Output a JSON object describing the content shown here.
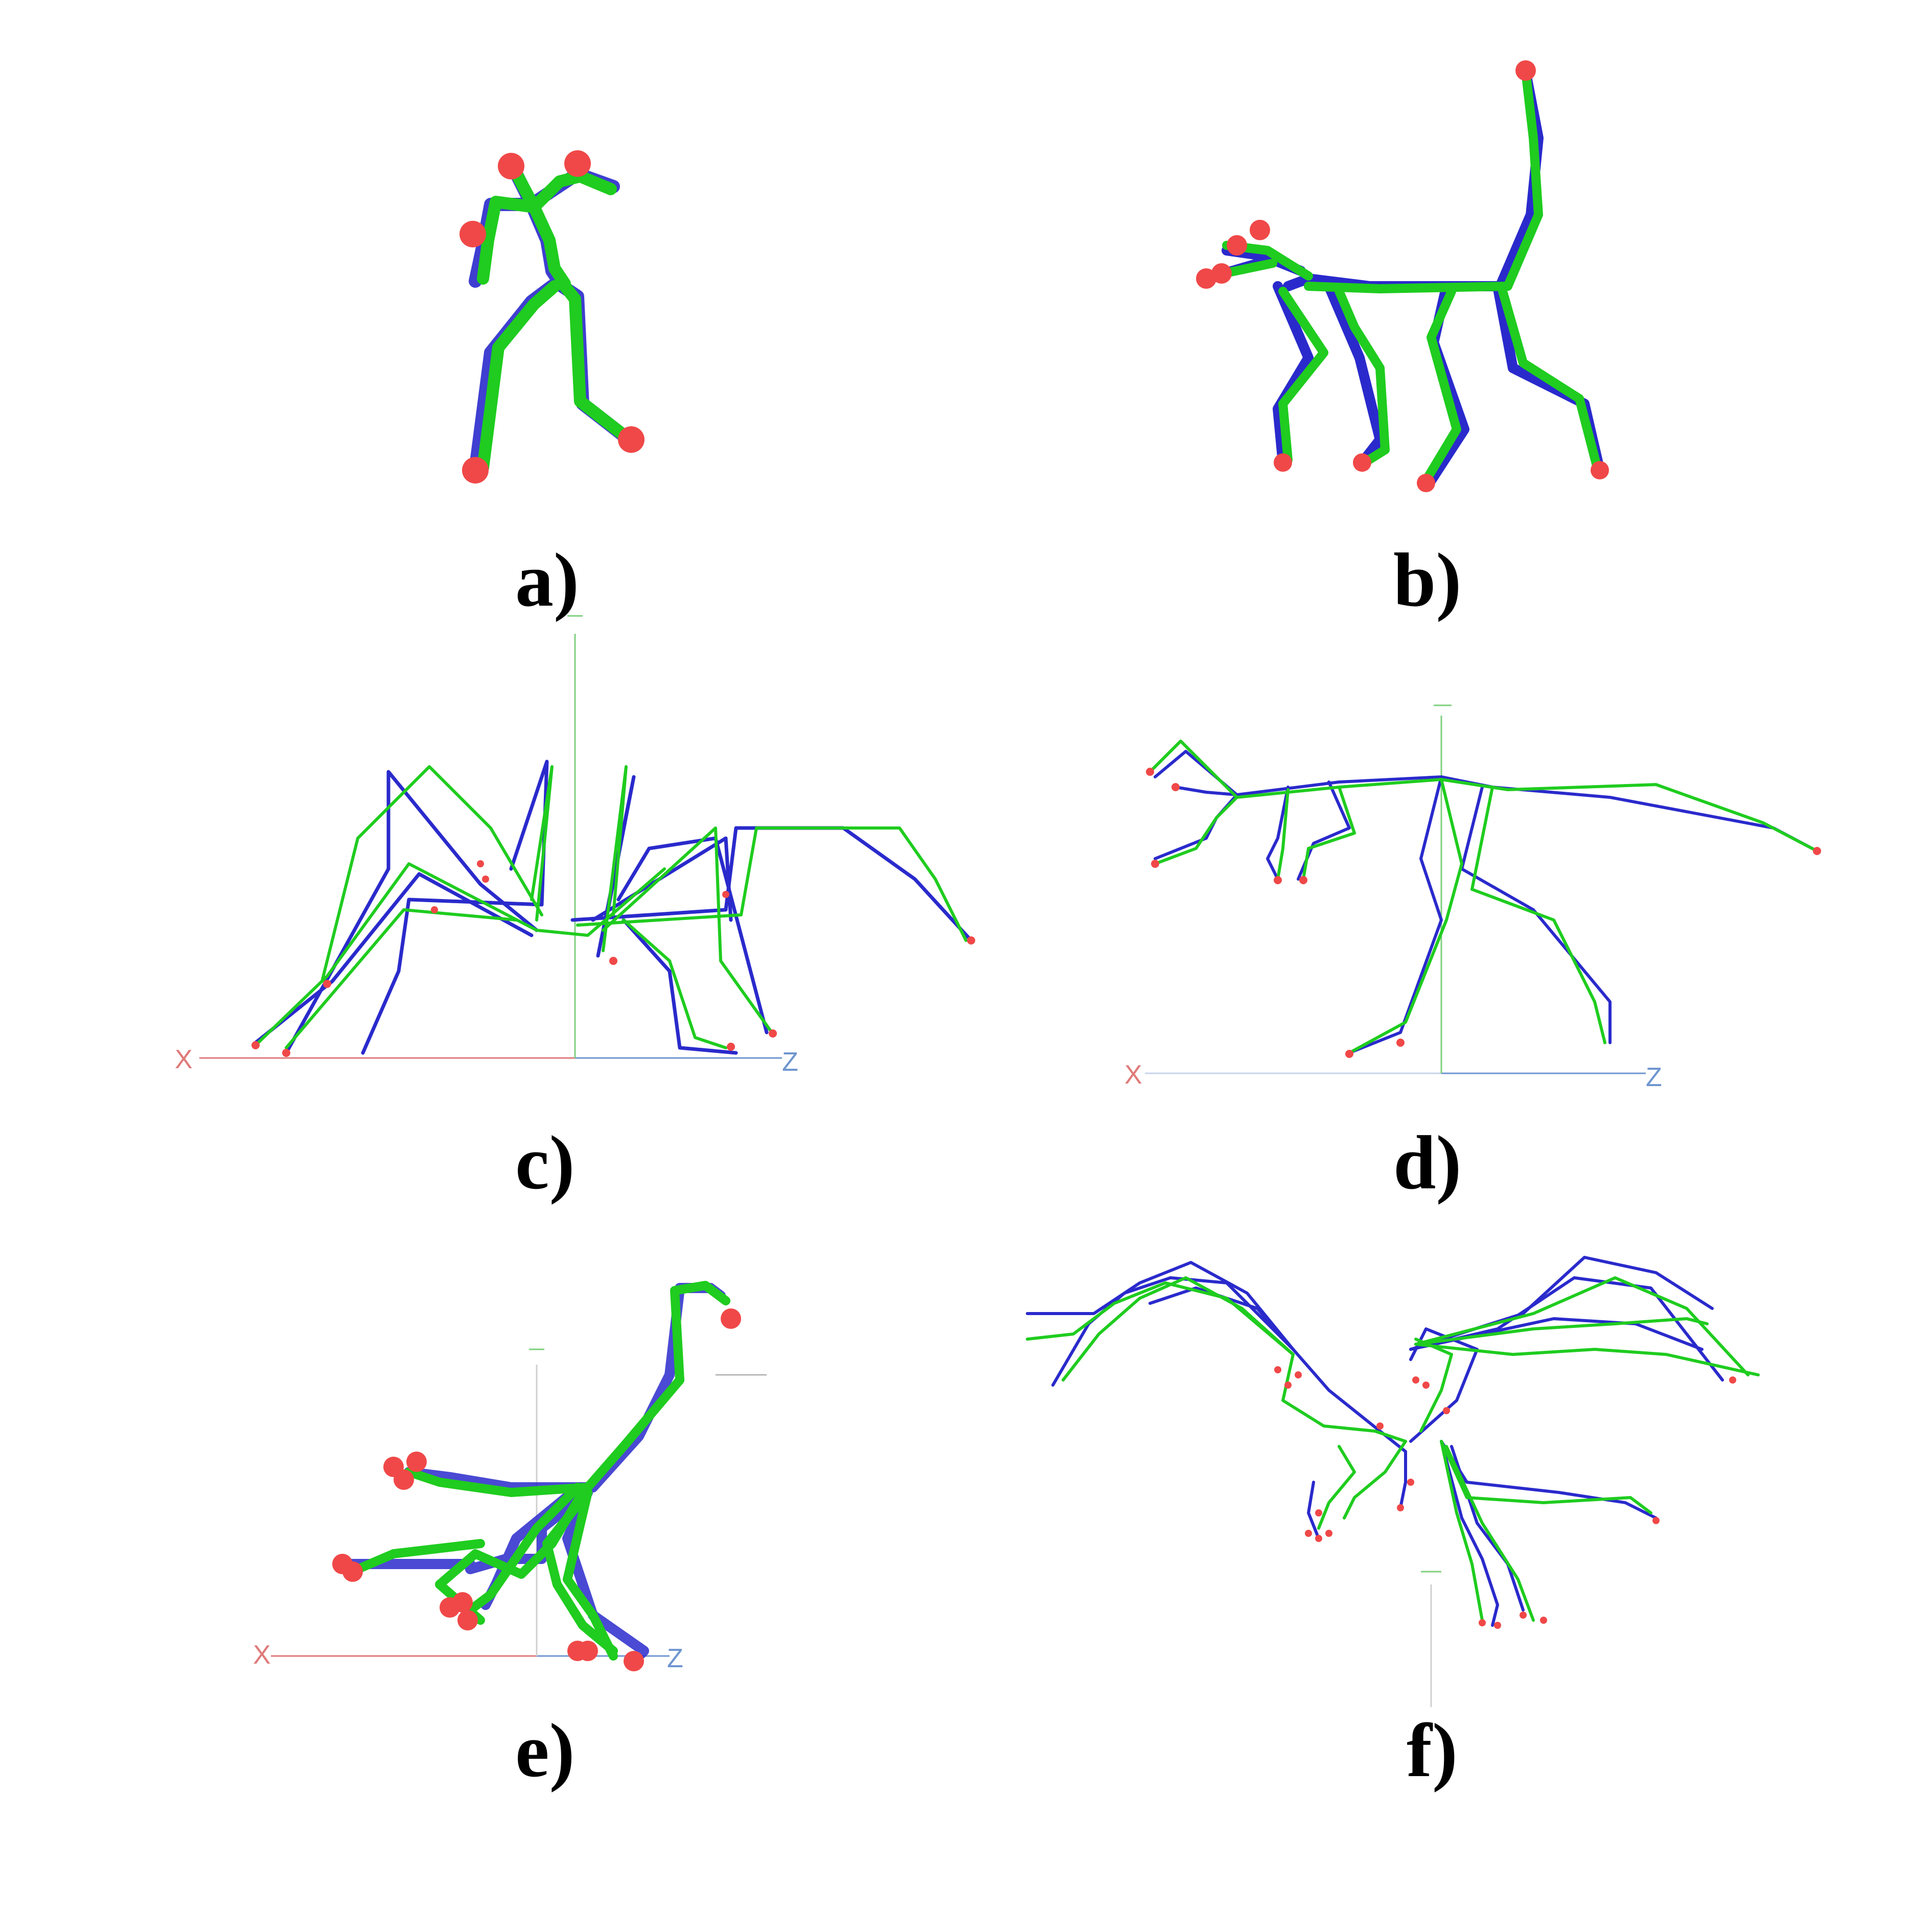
{
  "figure": {
    "panels": [
      {
        "id": "a",
        "label": "a)",
        "subject": "human skeleton"
      },
      {
        "id": "b",
        "label": "b)",
        "subject": "quadruped skeleton"
      },
      {
        "id": "c",
        "label": "c)",
        "subject": "spider skeleton",
        "axis_x": "X",
        "axis_z": "Z"
      },
      {
        "id": "d",
        "label": "d)",
        "subject": "dinosaur skeleton",
        "axis_x": "X",
        "axis_z": "Z"
      },
      {
        "id": "e",
        "label": "e)",
        "subject": "bird skeleton",
        "axis_x": "X",
        "axis_z": "Z"
      },
      {
        "id": "f",
        "label": "f)",
        "subject": "dragon skeleton"
      }
    ],
    "colors": {
      "skeleton_a": "#1fcc1f",
      "skeleton_b": "#2a2acc",
      "joint_end": "#f04848",
      "axis_x": "#e07a7a",
      "axis_z": "#6f96d0",
      "axis_y": "#7fd07f"
    }
  }
}
